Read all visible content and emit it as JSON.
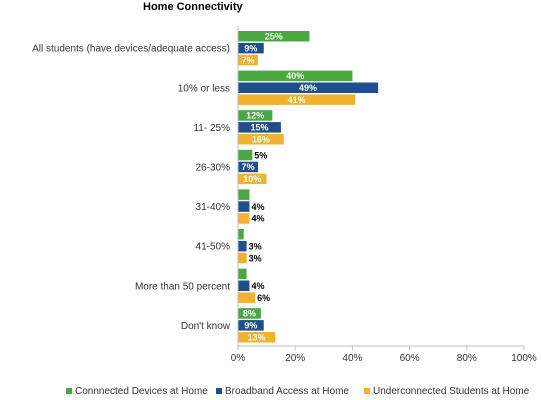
{
  "chart_data": {
    "type": "bar",
    "orientation": "horizontal",
    "title": "Home Connectivity",
    "categories": [
      "All students (have devices/adequate access)",
      "10% or less",
      "11- 25%",
      "26-30%",
      "31-40%",
      "41-50%",
      "More than 50 percent",
      "Don't know"
    ],
    "series": [
      {
        "name": "Connnected Devices at Home",
        "color": "#4aa843",
        "values": [
          25,
          40,
          12,
          5,
          4,
          2,
          3,
          8
        ],
        "labels": [
          "25%",
          "40%",
          "12%",
          "5%",
          "",
          "",
          "",
          "8%"
        ]
      },
      {
        "name": "Broadband Access at Home",
        "color": "#1f4e8c",
        "values": [
          9,
          49,
          15,
          7,
          4,
          3,
          4,
          9
        ],
        "labels": [
          "9%",
          "49%",
          "15%",
          "7%",
          "4%",
          "3%",
          "4%",
          "9%"
        ]
      },
      {
        "name": "Underconnected Students at Home",
        "color": "#f2b12f",
        "values": [
          7,
          41,
          16,
          10,
          4,
          3,
          6,
          13
        ],
        "labels": [
          "7%",
          "41%",
          "16%",
          "10%",
          "4%",
          "3%",
          "6%",
          "13%"
        ]
      }
    ],
    "xlim": [
      0,
      100
    ],
    "xticks": [
      0,
      20,
      40,
      60,
      80,
      100
    ],
    "xtick_labels": [
      "0%",
      "20%",
      "40%",
      "60%",
      "80%",
      "100%"
    ],
    "grid": false,
    "legend_position": "bottom"
  }
}
